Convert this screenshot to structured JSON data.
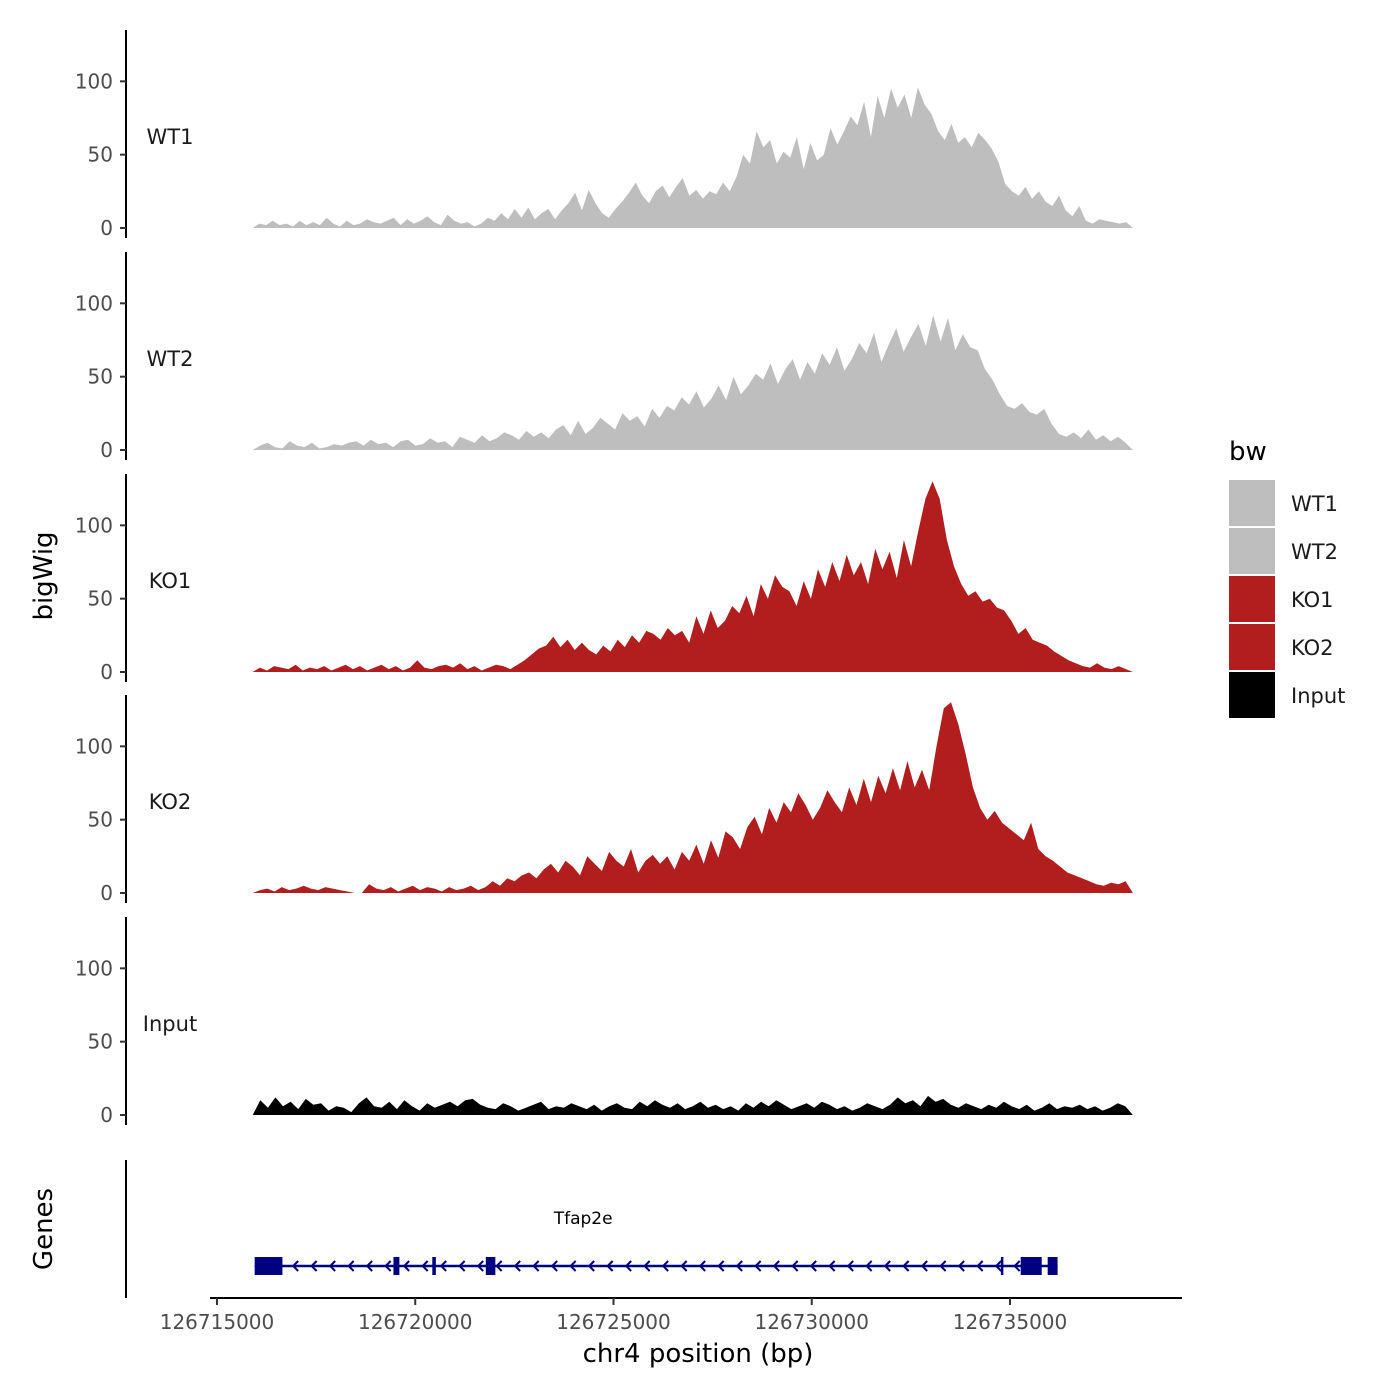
{
  "chart_data": {
    "type": "area",
    "ylabel": "bigWig",
    "genes_label": "Genes",
    "xlabel": "chr4 position (bp)",
    "xlim": [
      126715000,
      126739000
    ],
    "data_range": [
      126715900,
      126738100
    ],
    "ylim": [
      0,
      135
    ],
    "yticks": [
      "0",
      "50",
      "100"
    ],
    "ytick_values": [
      0,
      50,
      100
    ],
    "xticks": [
      "126715000",
      "126720000",
      "126725000",
      "126730000",
      "126735000"
    ],
    "xtick_values": [
      126715000,
      126720000,
      126725000,
      126730000,
      126735000
    ],
    "legend": {
      "title": "bw",
      "entries": [
        {
          "name": "WT1",
          "color": "#bebebe"
        },
        {
          "name": "WT2",
          "color": "#bebebe"
        },
        {
          "name": "KO1",
          "color": "#b21e1e"
        },
        {
          "name": "KO2",
          "color": "#b21e1e"
        },
        {
          "name": "Input",
          "color": "#000000"
        }
      ]
    },
    "series": [
      {
        "name": "WT1",
        "color": "#bebebe",
        "values": [
          0,
          3,
          2,
          5,
          2,
          3,
          1,
          5,
          2,
          4,
          2,
          7,
          3,
          1,
          5,
          2,
          3,
          6,
          4,
          3,
          5,
          7,
          2,
          6,
          3,
          5,
          8,
          4,
          2,
          9,
          5,
          3,
          4,
          1,
          3,
          7,
          5,
          10,
          6,
          13,
          7,
          14,
          6,
          10,
          13,
          6,
          12,
          17,
          24,
          12,
          26,
          17,
          10,
          7,
          13,
          18,
          24,
          31,
          22,
          17,
          25,
          29,
          21,
          28,
          34,
          22,
          26,
          20,
          25,
          23,
          31,
          25,
          35,
          50,
          44,
          66,
          55,
          60,
          44,
          52,
          48,
          62,
          40,
          58,
          46,
          50,
          68,
          57,
          66,
          76,
          70,
          86,
          62,
          90,
          75,
          95,
          82,
          91,
          75,
          96,
          84,
          78,
          66,
          60,
          71,
          58,
          62,
          55,
          65,
          60,
          54,
          45,
          30,
          25,
          22,
          28,
          20,
          25,
          18,
          15,
          22,
          12,
          8,
          15,
          5,
          3,
          6,
          5,
          4,
          3,
          4,
          0
        ]
      },
      {
        "name": "WT2",
        "color": "#bebebe",
        "values": [
          0,
          3,
          5,
          2,
          1,
          6,
          3,
          2,
          5,
          1,
          2,
          4,
          3,
          5,
          6,
          3,
          7,
          4,
          5,
          2,
          6,
          7,
          3,
          4,
          8,
          5,
          6,
          2,
          9,
          7,
          5,
          10,
          6,
          8,
          12,
          10,
          7,
          13,
          9,
          12,
          8,
          14,
          17,
          10,
          20,
          11,
          15,
          22,
          18,
          14,
          25,
          20,
          23,
          16,
          28,
          22,
          30,
          27,
          36,
          31,
          40,
          29,
          35,
          44,
          34,
          50,
          38,
          44,
          52,
          48,
          59,
          45,
          55,
          62,
          48,
          60,
          52,
          66,
          58,
          70,
          54,
          62,
          73,
          66,
          80,
          60,
          72,
          83,
          67,
          77,
          86,
          71,
          92,
          74,
          90,
          68,
          79,
          70,
          68,
          55,
          48,
          38,
          30,
          28,
          32,
          26,
          24,
          28,
          18,
          11,
          9,
          12,
          8,
          14,
          7,
          10,
          6,
          9,
          5,
          0
        ]
      },
      {
        "name": "KO1",
        "color": "#b21e1e",
        "values": [
          0,
          3,
          1,
          4,
          3,
          2,
          5,
          1,
          3,
          2,
          4,
          1,
          3,
          5,
          2,
          4,
          1,
          3,
          5,
          2,
          4,
          1,
          3,
          8,
          3,
          2,
          4,
          5,
          3,
          6,
          2,
          4,
          1,
          3,
          5,
          4,
          2,
          5,
          8,
          12,
          16,
          18,
          24,
          17,
          22,
          15,
          20,
          15,
          12,
          18,
          14,
          22,
          17,
          25,
          20,
          28,
          26,
          22,
          30,
          25,
          28,
          20,
          38,
          26,
          42,
          30,
          35,
          45,
          40,
          52,
          38,
          60,
          50,
          66,
          58,
          55,
          45,
          62,
          50,
          70,
          58,
          75,
          62,
          80,
          66,
          75,
          60,
          84,
          70,
          82,
          64,
          90,
          72,
          96,
          118,
          130,
          118,
          90,
          72,
          60,
          52,
          55,
          48,
          50,
          44,
          42,
          35,
          26,
          30,
          22,
          20,
          18,
          14,
          11,
          8,
          6,
          4,
          3,
          6,
          3,
          2,
          4,
          2,
          0
        ]
      },
      {
        "name": "KO2",
        "color": "#b21e1e",
        "values": [
          0,
          2,
          3,
          1,
          4,
          2,
          3,
          5,
          3,
          2,
          4,
          3,
          2,
          1,
          0,
          0,
          6,
          3,
          2,
          4,
          1,
          3,
          5,
          2,
          4,
          3,
          1,
          4,
          2,
          3,
          5,
          2,
          4,
          8,
          5,
          10,
          8,
          12,
          14,
          10,
          16,
          20,
          14,
          22,
          18,
          12,
          25,
          20,
          15,
          28,
          22,
          18,
          30,
          14,
          22,
          26,
          20,
          25,
          16,
          28,
          22,
          33,
          20,
          36,
          24,
          42,
          38,
          30,
          45,
          52,
          40,
          58,
          48,
          62,
          55,
          68,
          60,
          50,
          58,
          70,
          62,
          55,
          72,
          60,
          78,
          62,
          80,
          68,
          85,
          70,
          90,
          72,
          84,
          70,
          100,
          126,
          130,
          115,
          95,
          72,
          58,
          50,
          56,
          48,
          44,
          40,
          36,
          48,
          30,
          25,
          22,
          18,
          14,
          12,
          10,
          8,
          6,
          5,
          7,
          6,
          8,
          0
        ]
      },
      {
        "name": "Input",
        "color": "#000000",
        "values": [
          0,
          10,
          5,
          12,
          6,
          9,
          4,
          11,
          7,
          8,
          3,
          6,
          5,
          2,
          8,
          12,
          6,
          5,
          9,
          4,
          10,
          6,
          3,
          8,
          5,
          7,
          9,
          6,
          10,
          11,
          7,
          5,
          4,
          8,
          6,
          3,
          5,
          7,
          9,
          4,
          6,
          5,
          8,
          6,
          4,
          7,
          3,
          6,
          8,
          5,
          4,
          9,
          6,
          10,
          7,
          5,
          8,
          4,
          6,
          9,
          5,
          7,
          4,
          6,
          3,
          8,
          5,
          9,
          6,
          10,
          7,
          4,
          6,
          8,
          5,
          9,
          7,
          4,
          6,
          3,
          5,
          8,
          6,
          4,
          7,
          12,
          8,
          10,
          6,
          13,
          9,
          11,
          7,
          5,
          8,
          6,
          4,
          7,
          5,
          9,
          6,
          4,
          7,
          3,
          5,
          8,
          4,
          6,
          5,
          7,
          4,
          6,
          3,
          5,
          8,
          6,
          0
        ]
      }
    ],
    "genes": [
      {
        "name": "Tfap2e",
        "strand": "-",
        "color": "#000080",
        "tx_start": 126715950,
        "tx_end": 126736200,
        "exons": [
          [
            126715950,
            126716650
          ],
          [
            126719450,
            126719600
          ],
          [
            126720430,
            126720520
          ],
          [
            126721780,
            126722020
          ],
          [
            126734770,
            126734830
          ],
          [
            126735270,
            126735800
          ],
          [
            126735950,
            126736200
          ]
        ]
      }
    ]
  }
}
